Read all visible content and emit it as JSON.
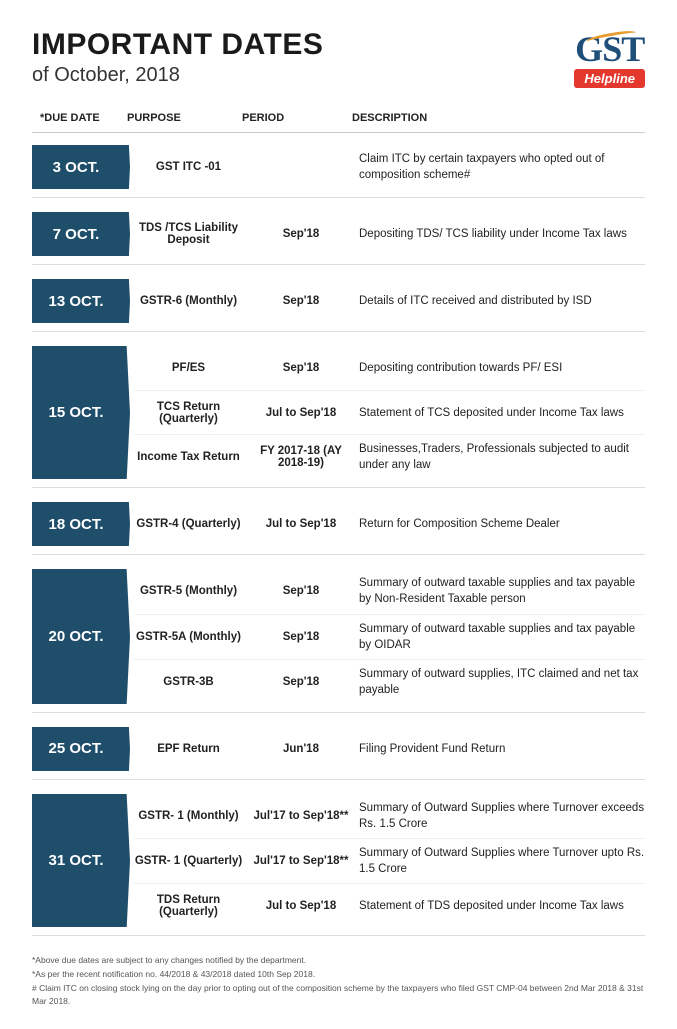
{
  "title": "IMPORTANT DATES",
  "subtitle": "of October, 2018",
  "logo": {
    "text": "GST",
    "tag": "Helpline"
  },
  "headers": {
    "date": "*DUE DATE",
    "purpose": "PURPOSE",
    "period": "PERIOD",
    "description": "DESCRIPTION"
  },
  "colors": {
    "badge_bg": "#1f4e6b",
    "badge_text": "#ffffff",
    "logo_blue": "#1f4e79",
    "helpline_bg": "#e4372e"
  },
  "blocks": [
    {
      "date": "3 OCT.",
      "rows": [
        {
          "purpose": "GST ITC -01",
          "period": "",
          "description": "Claim ITC by certain taxpayers who opted out of composition scheme#"
        }
      ]
    },
    {
      "date": "7 OCT.",
      "rows": [
        {
          "purpose": "TDS /TCS Liability Deposit",
          "period": "Sep'18",
          "description": "Depositing TDS/ TCS liability under Income Tax laws"
        }
      ]
    },
    {
      "date": "13 OCT.",
      "rows": [
        {
          "purpose": "GSTR-6 (Monthly)",
          "period": "Sep'18",
          "description": "Details of ITC received and distributed by ISD"
        }
      ]
    },
    {
      "date": "15 OCT.",
      "rows": [
        {
          "purpose": "PF/ES",
          "period": "Sep'18",
          "description": "Depositing contribution towards PF/ ESI"
        },
        {
          "purpose": "TCS Return (Quarterly)",
          "period": "Jul to Sep'18",
          "description": "Statement of TCS deposited under Income Tax laws"
        },
        {
          "purpose": "Income Tax Return",
          "period": "FY 2017-18 (AY 2018-19)",
          "description": "Businesses,Traders, Professionals subjected to audit under any law"
        }
      ]
    },
    {
      "date": "18 OCT.",
      "rows": [
        {
          "purpose": "GSTR-4 (Quarterly)",
          "period": "Jul to Sep'18",
          "description": "Return for Composition Scheme Dealer"
        }
      ]
    },
    {
      "date": "20 OCT.",
      "rows": [
        {
          "purpose": "GSTR-5 (Monthly)",
          "period": "Sep'18",
          "description": "Summary of outward taxable supplies and tax payable by  Non-Resident Taxable person"
        },
        {
          "purpose": "GSTR-5A (Monthly)",
          "period": "Sep'18",
          "description": "Summary of outward taxable supplies and tax payable by OIDAR"
        },
        {
          "purpose": "GSTR-3B",
          "period": "Sep'18",
          "description": "Summary of outward supplies, ITC claimed and net tax payable"
        }
      ]
    },
    {
      "date": "25 OCT.",
      "rows": [
        {
          "purpose": "EPF Return",
          "period": "Jun'18",
          "description": "Filing Provident Fund Return"
        }
      ]
    },
    {
      "date": "31 OCT.",
      "rows": [
        {
          "purpose": "GSTR- 1 (Monthly)",
          "period": "Jul'17 to Sep'18**",
          "description": "Summary of Outward Supplies where Turnover exceeds Rs. 1.5 Crore"
        },
        {
          "purpose": "GSTR- 1 (Quarterly)",
          "period": "Jul'17 to Sep'18**",
          "description": "Summary of Outward Supplies where Turnover upto Rs. 1.5 Crore"
        },
        {
          "purpose": "TDS Return (Quarterly)",
          "period": "Jul to Sep'18",
          "description": "Statement of TDS deposited under Income Tax laws"
        }
      ]
    }
  ],
  "footnotes": [
    "*Above due dates are subject to any changes notified by the department.",
    "*As per the recent notification no. 44/2018 & 43/2018 dated 10th Sep 2018.",
    "# Claim ITC on closing stock lying on the day prior to opting out of the composition scheme by the taxpayers who filed GST CMP-04 between 2nd Mar 2018 & 31st Mar 2018."
  ]
}
